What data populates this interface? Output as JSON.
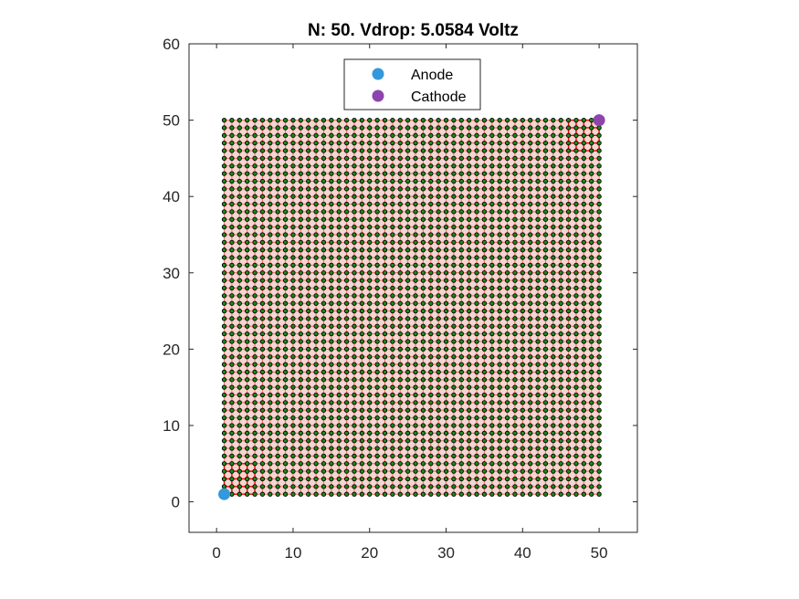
{
  "chart_data": {
    "type": "scatter",
    "title": "N: 50. Vdrop: 5.0584 Voltz",
    "xlabel": "",
    "ylabel": "",
    "xlim": [
      -3.6,
      55
    ],
    "ylim": [
      -4,
      60
    ],
    "xticks": [
      0,
      10,
      20,
      30,
      40,
      50
    ],
    "yticks": [
      0,
      10,
      20,
      30,
      40,
      50,
      60
    ],
    "grid": false,
    "legend_position": "top-center",
    "mesh": {
      "description_visible": false,
      "n": 50,
      "x_range": [
        1,
        50
      ],
      "y_range": [
        1,
        50
      ],
      "node_color": "#1a8c1a",
      "node_outline_color": "#000000",
      "edge_color": "#ff6a6a",
      "edge_hot_color": "#ff0000"
    },
    "series": [
      {
        "name": "Anode",
        "color": "#3498db",
        "points": [
          [
            1,
            1
          ]
        ]
      },
      {
        "name": "Cathode",
        "color": "#8e44ad",
        "points": [
          [
            50,
            50
          ]
        ]
      }
    ]
  }
}
